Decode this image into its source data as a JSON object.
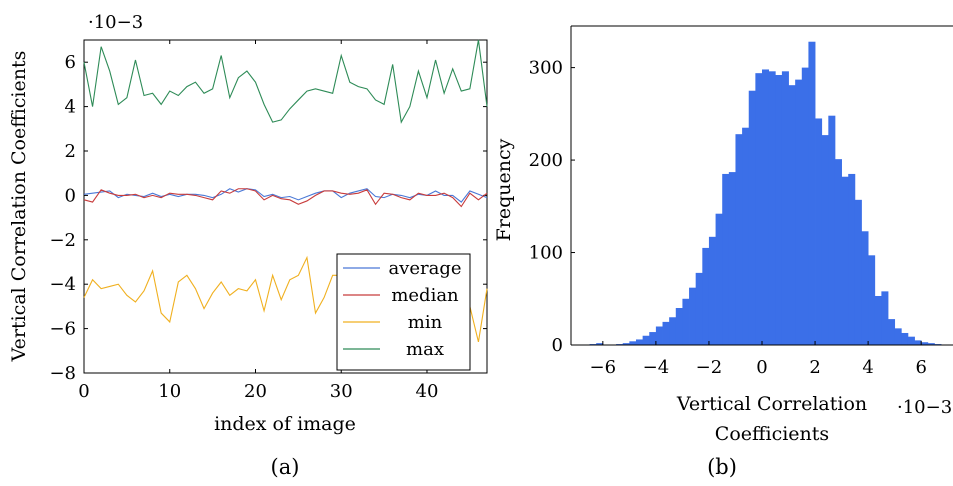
{
  "charts": [
    {
      "type": "line",
      "caption": "(a)",
      "xlabel": "index of image",
      "ylabel": "Vertical Correlation Coefficients",
      "y_multiplier": "·10−3",
      "xlim": [
        0,
        47
      ],
      "ylim": [
        -8,
        7
      ],
      "x_ticks": [
        0,
        10,
        20,
        30,
        40
      ],
      "y_ticks": [
        -8,
        -6,
        -4,
        -2,
        0,
        2,
        4,
        6
      ],
      "legend_position": "bottom-right",
      "series": [
        {
          "name": "average",
          "color": "#4a78d6",
          "values": [
            0.05,
            0.1,
            0.15,
            0.2,
            -0.1,
            0.05,
            0.0,
            -0.05,
            0.1,
            -0.05,
            0.05,
            -0.05,
            0.05,
            0.05,
            0.0,
            -0.1,
            0.05,
            0.3,
            0.15,
            0.3,
            0.25,
            -0.05,
            0.05,
            -0.1,
            -0.05,
            -0.2,
            -0.05,
            0.1,
            0.2,
            0.2,
            -0.1,
            0.1,
            0.2,
            0.3,
            -0.05,
            -0.1,
            0.05,
            0.0,
            -0.1,
            0.05,
            0.0,
            0.2,
            0.0,
            0.0,
            -0.3,
            0.2,
            0.05,
            -0.1
          ]
        },
        {
          "name": "median",
          "color": "#c83c3c",
          "values": [
            -0.2,
            -0.3,
            0.25,
            0.1,
            0.0,
            0.0,
            0.05,
            -0.1,
            0.0,
            -0.1,
            0.1,
            0.05,
            0.05,
            0.0,
            -0.1,
            -0.2,
            0.2,
            0.1,
            0.3,
            0.3,
            0.2,
            -0.2,
            0.0,
            -0.15,
            -0.2,
            -0.4,
            -0.25,
            0.0,
            0.2,
            0.2,
            0.1,
            0.05,
            0.1,
            0.25,
            -0.4,
            0.1,
            0.05,
            -0.1,
            -0.2,
            0.1,
            0.0,
            0.0,
            0.1,
            -0.1,
            -0.5,
            0.1,
            -0.2,
            0.1
          ]
        },
        {
          "name": "min",
          "color": "#f0b020",
          "values": [
            -4.6,
            -3.8,
            -4.2,
            -4.1,
            -4.0,
            -4.5,
            -4.8,
            -4.3,
            -3.4,
            -5.3,
            -5.7,
            -3.9,
            -3.6,
            -4.2,
            -5.1,
            -4.4,
            -3.9,
            -4.5,
            -4.2,
            -4.3,
            -3.8,
            -5.2,
            -3.6,
            -4.7,
            -3.8,
            -3.6,
            -2.8,
            -5.3,
            -4.6,
            -3.6,
            -3.6,
            -3.6,
            -3.6,
            -3.6,
            -3.6,
            -3.6,
            -3.6,
            -3.6,
            -3.6,
            -3.6,
            -3.6,
            -3.6,
            -3.6,
            -3.6,
            -3.6,
            -5.0,
            -6.6,
            -4.2
          ]
        },
        {
          "name": "max",
          "color": "#2e8b57",
          "values": [
            6.0,
            4.0,
            6.7,
            5.6,
            4.1,
            4.4,
            6.1,
            4.5,
            4.6,
            4.1,
            4.7,
            4.5,
            4.9,
            5.1,
            4.6,
            4.8,
            6.3,
            4.4,
            5.3,
            5.6,
            5.1,
            4.1,
            3.3,
            3.4,
            3.9,
            4.3,
            4.7,
            4.8,
            4.7,
            4.6,
            6.3,
            5.1,
            4.9,
            4.8,
            4.3,
            4.1,
            5.9,
            3.3,
            4.0,
            5.6,
            4.4,
            6.1,
            4.6,
            5.7,
            4.7,
            4.8,
            7.0,
            4.0
          ]
        }
      ]
    },
    {
      "type": "bar",
      "caption": "(b)",
      "xlabel_line1": "Vertical Correlation",
      "xlabel_line2": "Coefficients",
      "ylabel": "Frequency",
      "x_multiplier": "·10−3",
      "color": "#3b6fe8",
      "xlim": [
        -7.2,
        7.2
      ],
      "ylim": [
        0,
        345
      ],
      "x_ticks": [
        -6,
        -4,
        -2,
        0,
        2,
        4,
        6
      ],
      "y_ticks": [
        0,
        100,
        200,
        300
      ],
      "bin_start": -7.0,
      "bin_width": 0.25,
      "frequencies": [
        0,
        0,
        1,
        2,
        0,
        0,
        1,
        2,
        4,
        6,
        10,
        14,
        20,
        25,
        30,
        40,
        50,
        62,
        78,
        105,
        117,
        142,
        185,
        187,
        228,
        235,
        275,
        294,
        298,
        296,
        292,
        296,
        281,
        287,
        300,
        328,
        245,
        227,
        248,
        201,
        182,
        185,
        157,
        123,
        97,
        53,
        58,
        28,
        18,
        13,
        9,
        5,
        3,
        2,
        1,
        0,
        0
      ]
    }
  ]
}
